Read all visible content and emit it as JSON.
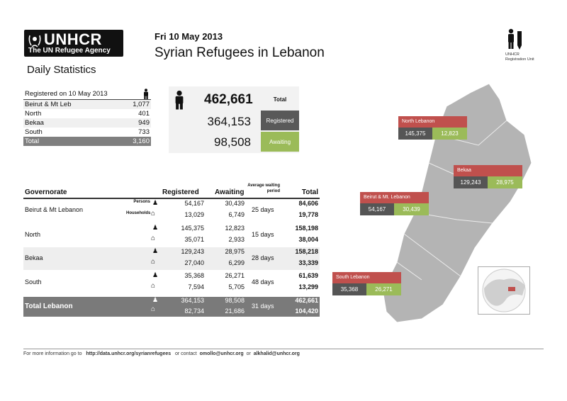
{
  "header": {
    "logo_text": "UNHCR",
    "logo_sub": "The UN Refugee Agency",
    "date": "Fri 10 May 2013",
    "title": "Syrian Refugees in Lebanon",
    "subtitle": "Daily Statistics",
    "reg_unit": [
      "UNHCR",
      "Registration Unit"
    ]
  },
  "registered_today": {
    "heading": "Registered on 10 May 2013",
    "rows": [
      {
        "name": "Beirut & Mt Leb",
        "value": "1,077"
      },
      {
        "name": "North",
        "value": "401"
      },
      {
        "name": "Bekaa",
        "value": "949"
      },
      {
        "name": "South",
        "value": "733"
      }
    ],
    "total_label": "Total",
    "total_value": "3,160"
  },
  "summary": {
    "total_value": "462,661",
    "total_label": "Total",
    "registered_value": "364,153",
    "registered_label": "Registered",
    "awaiting_value": "98,508",
    "awaiting_label": "Awaiting"
  },
  "governorates": {
    "headers": {
      "governorate": "Governorate",
      "registered": "Registered",
      "awaiting": "Awaiting",
      "avg_wait": [
        "Average waiting",
        "period"
      ],
      "total": "Total"
    },
    "persons_label": "Persons",
    "households_label": "Households",
    "rows": [
      {
        "name": "Beirut & Mt Lebanon",
        "p_reg": "54,167",
        "p_await": "30,439",
        "p_total": "84,606",
        "h_reg": "13,029",
        "h_await": "6,749",
        "h_total": "19,778",
        "wait": "25 days"
      },
      {
        "name": "North",
        "p_reg": "145,375",
        "p_await": "12,823",
        "p_total": "158,198",
        "h_reg": "35,071",
        "h_await": "2,933",
        "h_total": "38,004",
        "wait": "15 days"
      },
      {
        "name": "Bekaa",
        "p_reg": "129,243",
        "p_await": "28,975",
        "p_total": "158,218",
        "h_reg": "27,040",
        "h_await": "6,299",
        "h_total": "33,339",
        "wait": "28 days"
      },
      {
        "name": "South",
        "p_reg": "35,368",
        "p_await": "26,271",
        "p_total": "61,639",
        "h_reg": "7,594",
        "h_await": "5,705",
        "h_total": "13,299",
        "wait": "48 days"
      }
    ],
    "total": {
      "name": "Total Lebanon",
      "p_reg": "364,153",
      "p_await": "98,508",
      "p_total": "462,661",
      "h_reg": "82,734",
      "h_await": "21,686",
      "h_total": "104,420",
      "wait": "31 days"
    }
  },
  "map_labels": [
    {
      "name": "North Lebanon",
      "registered": "145,375",
      "awaiting": "12,823"
    },
    {
      "name": "Bekaa",
      "registered": "129,243",
      "awaiting": "28,975"
    },
    {
      "name": "Beirut & Mt. Lebanon",
      "registered": "54,167",
      "awaiting": "30,439"
    },
    {
      "name": "South Lebanon",
      "registered": "35,368",
      "awaiting": "26,271"
    }
  ],
  "footer": {
    "lead": "For more information go to",
    "url": "http://data.unhcr.org/syrianrefugees",
    "contact_lead": "or contact",
    "email1": "omollo@unhcr.org",
    "or": "or",
    "email2": "alkhalid@unhcr.org"
  },
  "colors": {
    "registered": "#595959",
    "awaiting": "#9bbb59",
    "region": "#c0504d",
    "map": "#b4b4b4"
  }
}
